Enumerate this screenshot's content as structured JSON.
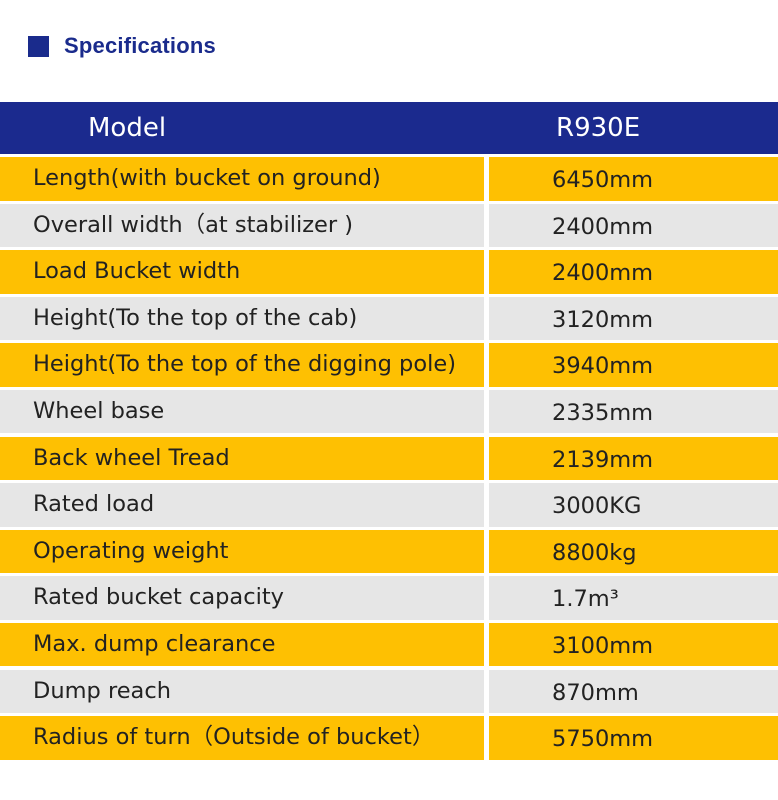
{
  "header": {
    "title": "Specifications"
  },
  "table": {
    "columns": [
      "Model",
      "R930E"
    ],
    "rows": [
      {
        "label": "Length(with bucket on ground)",
        "value": "6450mm"
      },
      {
        "label": "Overall width（at stabilizer )",
        "value": "2400mm"
      },
      {
        "label": "Load Bucket width",
        "value": "2400mm"
      },
      {
        "label": "Height(To the top of the cab)",
        "value": "3120mm"
      },
      {
        "label": "Height(To the top of the digging pole)",
        "value": "3940mm"
      },
      {
        "label": "Wheel base",
        "value": "2335mm"
      },
      {
        "label": "Back wheel Tread",
        "value": "2139mm"
      },
      {
        "label": "Rated load",
        "value": "3000KG"
      },
      {
        "label": "Operating weight",
        "value": "8800kg"
      },
      {
        "label": "Rated bucket capacity",
        "value": "1.7m³"
      },
      {
        "label": "Max. dump clearance",
        "value": "3100mm"
      },
      {
        "label": "Dump reach",
        "value": "870mm"
      },
      {
        "label": "Radius of turn（Outside of bucket）",
        "value": "5750mm"
      }
    ]
  },
  "colors": {
    "header_blue": "#1b2a8e",
    "row_yellow": "#fec002",
    "row_gray": "#e6e6e6"
  }
}
